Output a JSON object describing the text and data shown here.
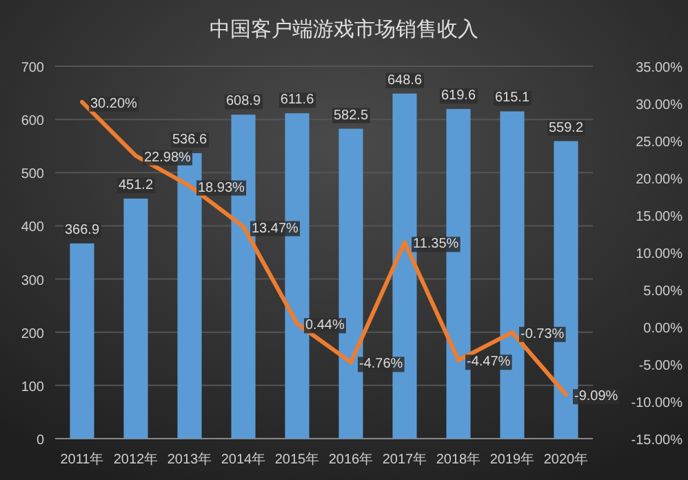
{
  "chart_data": {
    "type": "bar",
    "title": "中国客户端游戏市场销售收入",
    "categories": [
      "2011年",
      "2012年",
      "2013年",
      "2014年",
      "2015年",
      "2016年",
      "2017年",
      "2018年",
      "2019年",
      "2020年"
    ],
    "series": [
      {
        "color": "#5b9bd5",
        "values": [
          366.9,
          451.2,
          536.6,
          608.9,
          611.6,
          582.5,
          648.6,
          619.6,
          615.1,
          559.2
        ],
        "value_labels": [
          "366.9",
          "451.2",
          "536.6",
          "608.9",
          "611.6",
          "582.5",
          "648.6",
          "619.6",
          "615.1",
          "559.2"
        ]
      },
      {
        "type": "line",
        "axis": "y2",
        "color": "#ed7d31",
        "values": [
          30.2,
          22.98,
          18.93,
          13.47,
          0.44,
          -4.76,
          11.35,
          -4.47,
          -0.73,
          -9.09
        ],
        "value_labels": [
          "30.20%",
          "22.98%",
          "18.93%",
          "13.47%",
          "0.44%",
          "-4.76%",
          "11.35%",
          "-4.47%",
          "-0.73%",
          "-9.09%"
        ]
      }
    ],
    "ylim": [
      0,
      700
    ],
    "yticks": [
      0,
      100,
      200,
      300,
      400,
      500,
      600,
      700
    ],
    "y2lim": [
      -15,
      35
    ],
    "y2ticks": [
      {
        "value": -15,
        "label": "-15.00%"
      },
      {
        "value": -10,
        "label": "-10.00%"
      },
      {
        "value": -5,
        "label": "-5.00%"
      },
      {
        "value": 0,
        "label": "0.00%"
      },
      {
        "value": 5,
        "label": "5.00%"
      },
      {
        "value": 10,
        "label": "10.00%"
      },
      {
        "value": 15,
        "label": "15.00%"
      },
      {
        "value": 20,
        "label": "20.00%"
      },
      {
        "value": 25,
        "label": "25.00%"
      },
      {
        "value": 30,
        "label": "30.00%"
      },
      {
        "value": 35,
        "label": "35.00%"
      }
    ],
    "grid": "y",
    "marker": "none",
    "line_style": "solid"
  }
}
